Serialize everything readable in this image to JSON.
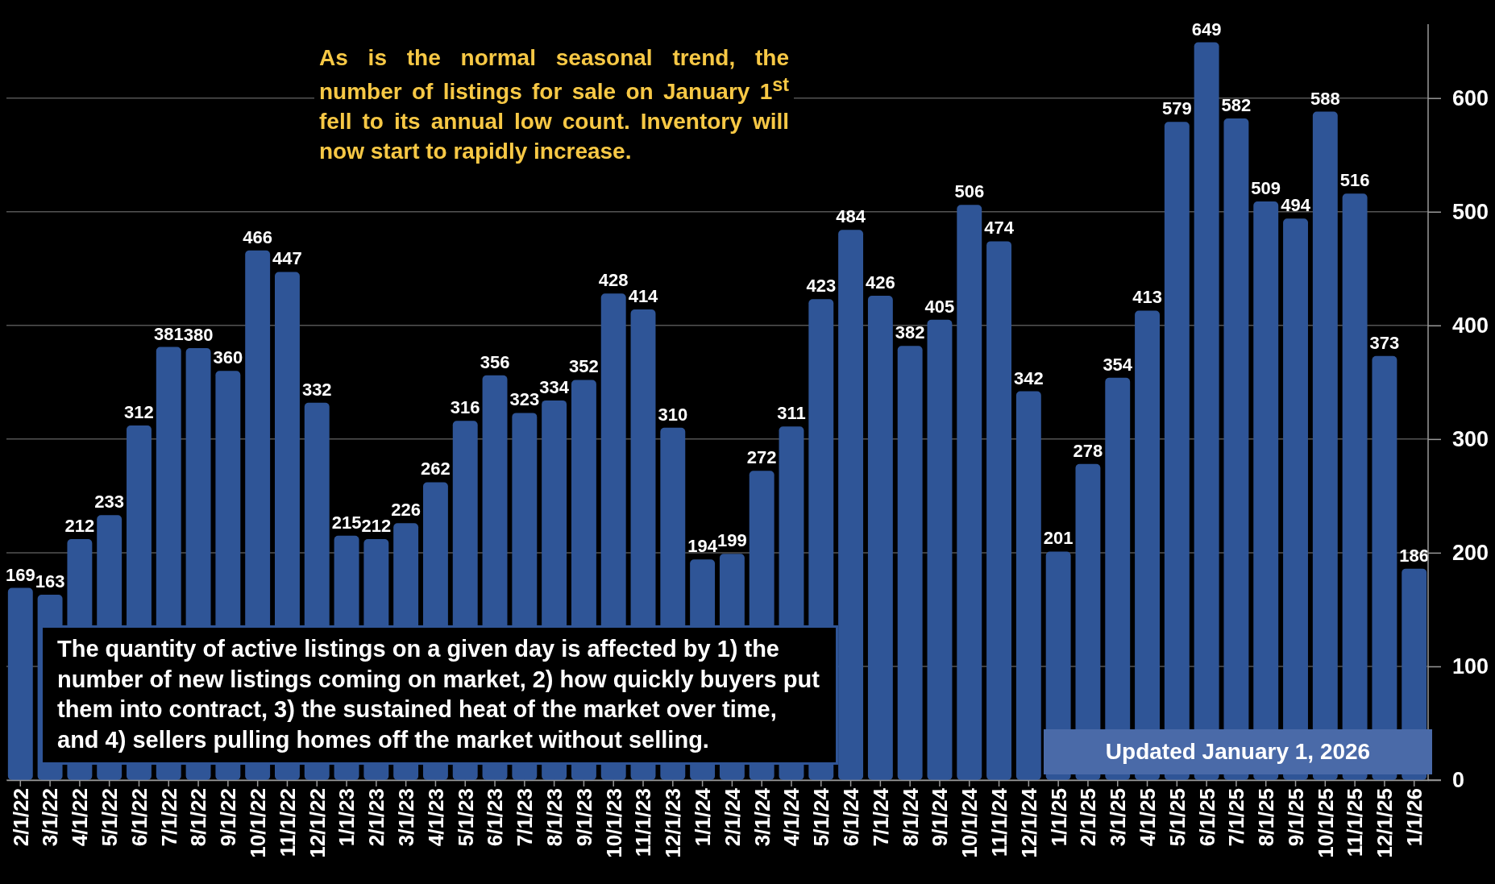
{
  "chart_data": {
    "type": "bar",
    "categories": [
      "2/1/22",
      "3/1/22",
      "4/1/22",
      "5/1/22",
      "6/1/22",
      "7/1/22",
      "8/1/22",
      "9/1/22",
      "10/1/22",
      "11/1/22",
      "12/1/22",
      "1/1/23",
      "2/1/23",
      "3/1/23",
      "4/1/23",
      "5/1/23",
      "6/1/23",
      "7/1/23",
      "8/1/23",
      "9/1/23",
      "10/1/23",
      "11/1/23",
      "12/1/23",
      "1/1/24",
      "2/1/24",
      "3/1/24",
      "4/1/24",
      "5/1/24",
      "6/1/24",
      "7/1/24",
      "8/1/24",
      "9/1/24",
      "10/1/24",
      "11/1/24",
      "12/1/24",
      "1/1/25",
      "2/1/25",
      "3/1/25",
      "4/1/25",
      "5/1/25",
      "6/1/25",
      "7/1/25",
      "8/1/25",
      "9/1/25",
      "10/1/25",
      "11/1/25",
      "12/1/25",
      "1/1/26"
    ],
    "values": [
      169,
      163,
      212,
      233,
      312,
      381,
      380,
      360,
      466,
      447,
      332,
      215,
      212,
      226,
      262,
      316,
      356,
      323,
      334,
      352,
      428,
      414,
      310,
      194,
      199,
      272,
      311,
      423,
      484,
      426,
      382,
      405,
      506,
      474,
      342,
      201,
      278,
      354,
      413,
      579,
      649,
      582,
      509,
      494,
      588,
      516,
      373,
      186
    ],
    "color": "#2f5597",
    "ylim": [
      0,
      665
    ],
    "yticks": [
      0,
      100,
      200,
      300,
      400,
      500,
      600
    ],
    "grid": "y",
    "data_labels": true,
    "annotations": [
      "As is the normal seasonal trend, the number of listings for sale on January 1$^{st}$ fell to its annual low count. Inventory will now start to rapidly increase.",
      "The quantity of active listings on a given day is affected by 1) the number of new listings coming on market, 2) how quickly buyers put them into contract, 3) the sustained heat of the market over time, and 4) sellers pulling homes off the market without selling.",
      "Updated January 1, 2026"
    ]
  }
}
